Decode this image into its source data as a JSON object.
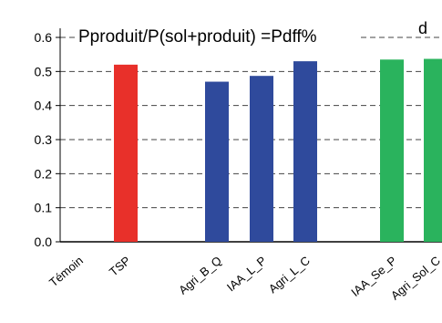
{
  "chart_data": {
    "type": "bar",
    "title": "Pproduit/P(sol+produit) =Pdff%",
    "panel_label": "d",
    "xlabel": "",
    "ylabel": "",
    "ylim": [
      0,
      0.6
    ],
    "yticks": [
      "0.0",
      "0.1",
      "0.2",
      "0.3",
      "0.4",
      "0.5",
      "0.6"
    ],
    "grid": "horizontal-dashed",
    "categories": [
      "Témoin",
      "TSP",
      "Agri_B_Q",
      "IAA_L_P",
      "Agri_L_C",
      "IAA_Se_P",
      "Agri_Sol_C"
    ],
    "values": [
      0,
      0.52,
      0.47,
      0.487,
      0.53,
      0.535,
      0.537
    ],
    "colors": [
      "#e8302a",
      "#e8302a",
      "#2f4a9c",
      "#2f4a9c",
      "#2f4a9c",
      "#2ab35d",
      "#2ab35d"
    ]
  }
}
